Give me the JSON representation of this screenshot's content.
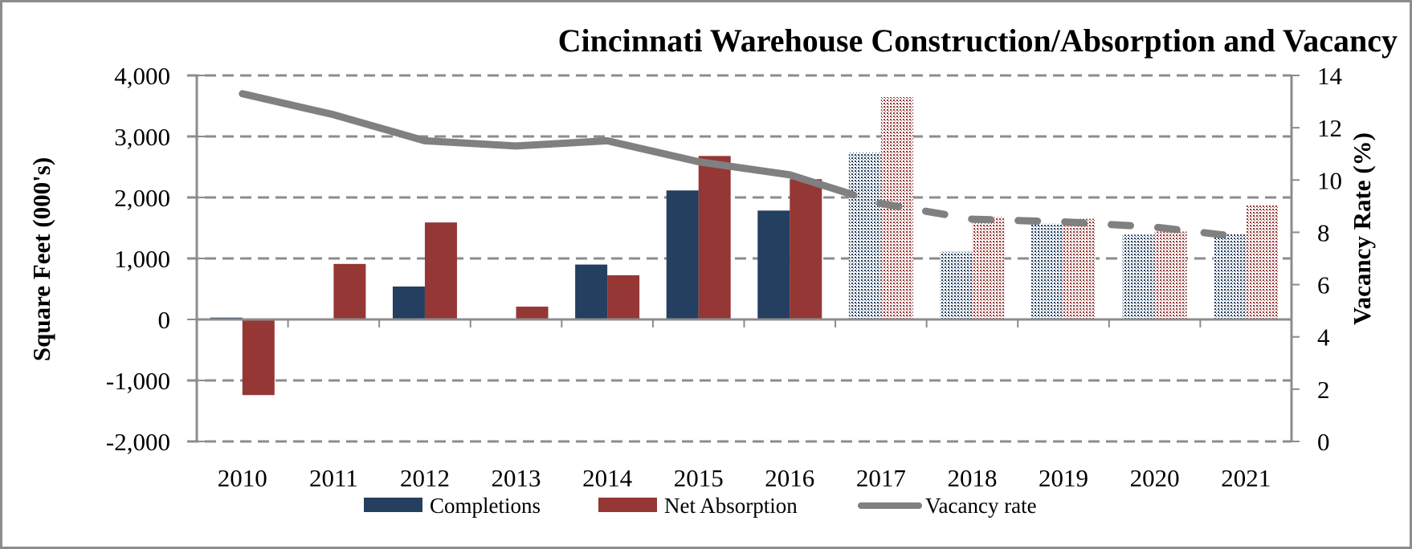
{
  "chart_data": {
    "type": "bar",
    "title": "Cincinnati Warehouse Construction/Absorption and Vacancy",
    "xlabel": "",
    "ylabel": "Square Feet (000's)",
    "y2label": "Vacancy Rate (%)",
    "categories": [
      "2010",
      "2011",
      "2012",
      "2013",
      "2014",
      "2015",
      "2016",
      "2017",
      "2018",
      "2019",
      "2020",
      "2021"
    ],
    "ylim": [
      -2000,
      4000
    ],
    "y_ticks": [
      4000,
      3000,
      2000,
      1000,
      0,
      -1000,
      -2000
    ],
    "y_tick_labels": [
      "4,000",
      "3,000",
      "2,000",
      "1,000",
      "0",
      "-1,000",
      "-2,000"
    ],
    "y2lim": [
      0,
      14
    ],
    "y2_ticks": [
      14,
      12,
      10,
      8,
      6,
      4,
      2,
      0
    ],
    "y2_tick_labels": [
      "14",
      "12",
      "10",
      "8",
      "6",
      "4",
      "2",
      "0"
    ],
    "grid": true,
    "forecast_start": "2017",
    "series": [
      {
        "name": "Completions",
        "type": "bar",
        "axis": "left",
        "color": "#243f60",
        "values": [
          30,
          0,
          540,
          0,
          900,
          2115,
          1785,
          2735,
          1110,
          1570,
          1390,
          1400
        ]
      },
      {
        "name": "Net Absorption",
        "type": "bar",
        "axis": "left",
        "color": "#953735",
        "values": [
          -1240,
          910,
          1590,
          210,
          725,
          2680,
          2300,
          3645,
          1680,
          1650,
          1440,
          1875
        ]
      },
      {
        "name": "Vacancy rate",
        "type": "line",
        "axis": "right",
        "color": "#808080",
        "values": [
          13.3,
          12.5,
          11.5,
          11.3,
          11.5,
          10.7,
          10.2,
          9.1,
          8.5,
          8.4,
          8.2,
          7.8
        ]
      }
    ],
    "legend": {
      "placement": "bottom",
      "entries": [
        "Completions",
        "Net Absorption",
        "Vacancy rate"
      ]
    }
  }
}
